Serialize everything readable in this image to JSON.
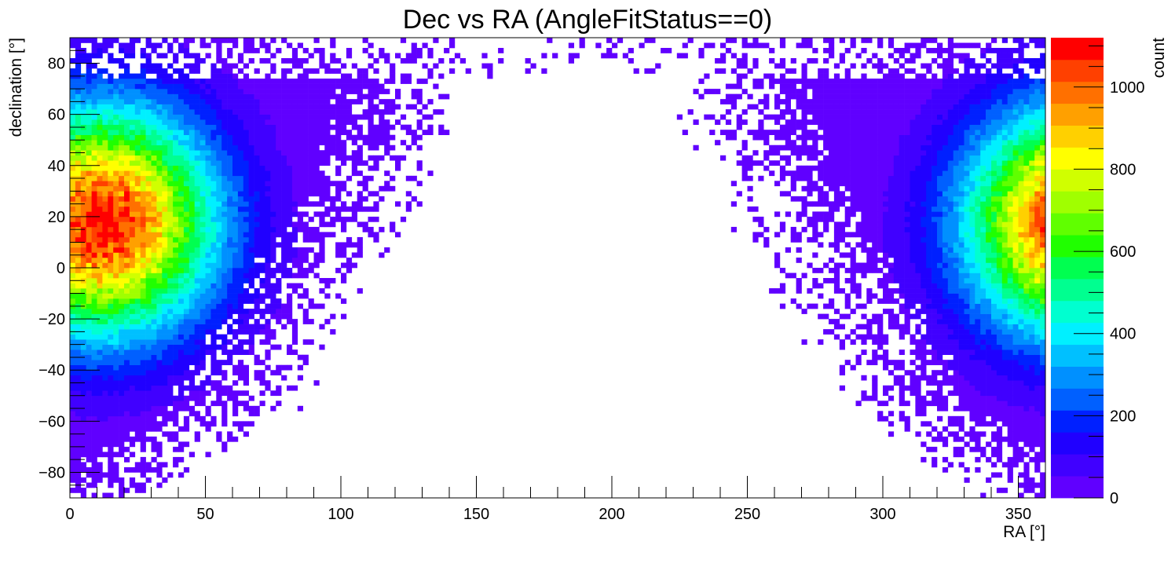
{
  "chart_data": {
    "type": "heatmap",
    "title": "Dec vs RA (AngleFitStatus==0)",
    "xlabel": "RA [°]",
    "ylabel": "declination [°]",
    "zlabel": "count",
    "xlim": [
      0,
      360
    ],
    "ylim": [
      -90,
      90
    ],
    "zlim": [
      0,
      1120
    ],
    "x_ticks": [
      0,
      50,
      100,
      150,
      200,
      250,
      300,
      350
    ],
    "y_ticks": [
      -80,
      -60,
      -40,
      -20,
      0,
      20,
      40,
      60,
      80
    ],
    "z_ticks": [
      0,
      200,
      400,
      600,
      800,
      1000
    ],
    "x_tick_labels": [
      "0",
      "50",
      "100",
      "150",
      "200",
      "250",
      "300",
      "350"
    ],
    "y_tick_labels": [
      "−80",
      "−60",
      "−40",
      "−20",
      "0",
      "20",
      "40",
      "60",
      "80"
    ],
    "z_tick_labels": [
      "0",
      "200",
      "400",
      "600",
      "800",
      "1000"
    ],
    "grid": false,
    "colorbar_position": "right",
    "palette": [
      "#6000ff",
      "#4000ff",
      "#2000ff",
      "#0020ff",
      "#0060ff",
      "#0090ff",
      "#00c0ff",
      "#00f0ff",
      "#00ffd0",
      "#00ff90",
      "#00ff50",
      "#20ff00",
      "#60ff00",
      "#a0ff00",
      "#d0ff00",
      "#ffff00",
      "#ffd000",
      "#ffa000",
      "#ff7000",
      "#ff4000",
      "#ff0000"
    ],
    "hotspots": [
      {
        "ra": 12,
        "dec": 18,
        "peak_count": 1100
      },
      {
        "ra": 372,
        "dec": 18,
        "peak_count": 1100
      }
    ]
  }
}
